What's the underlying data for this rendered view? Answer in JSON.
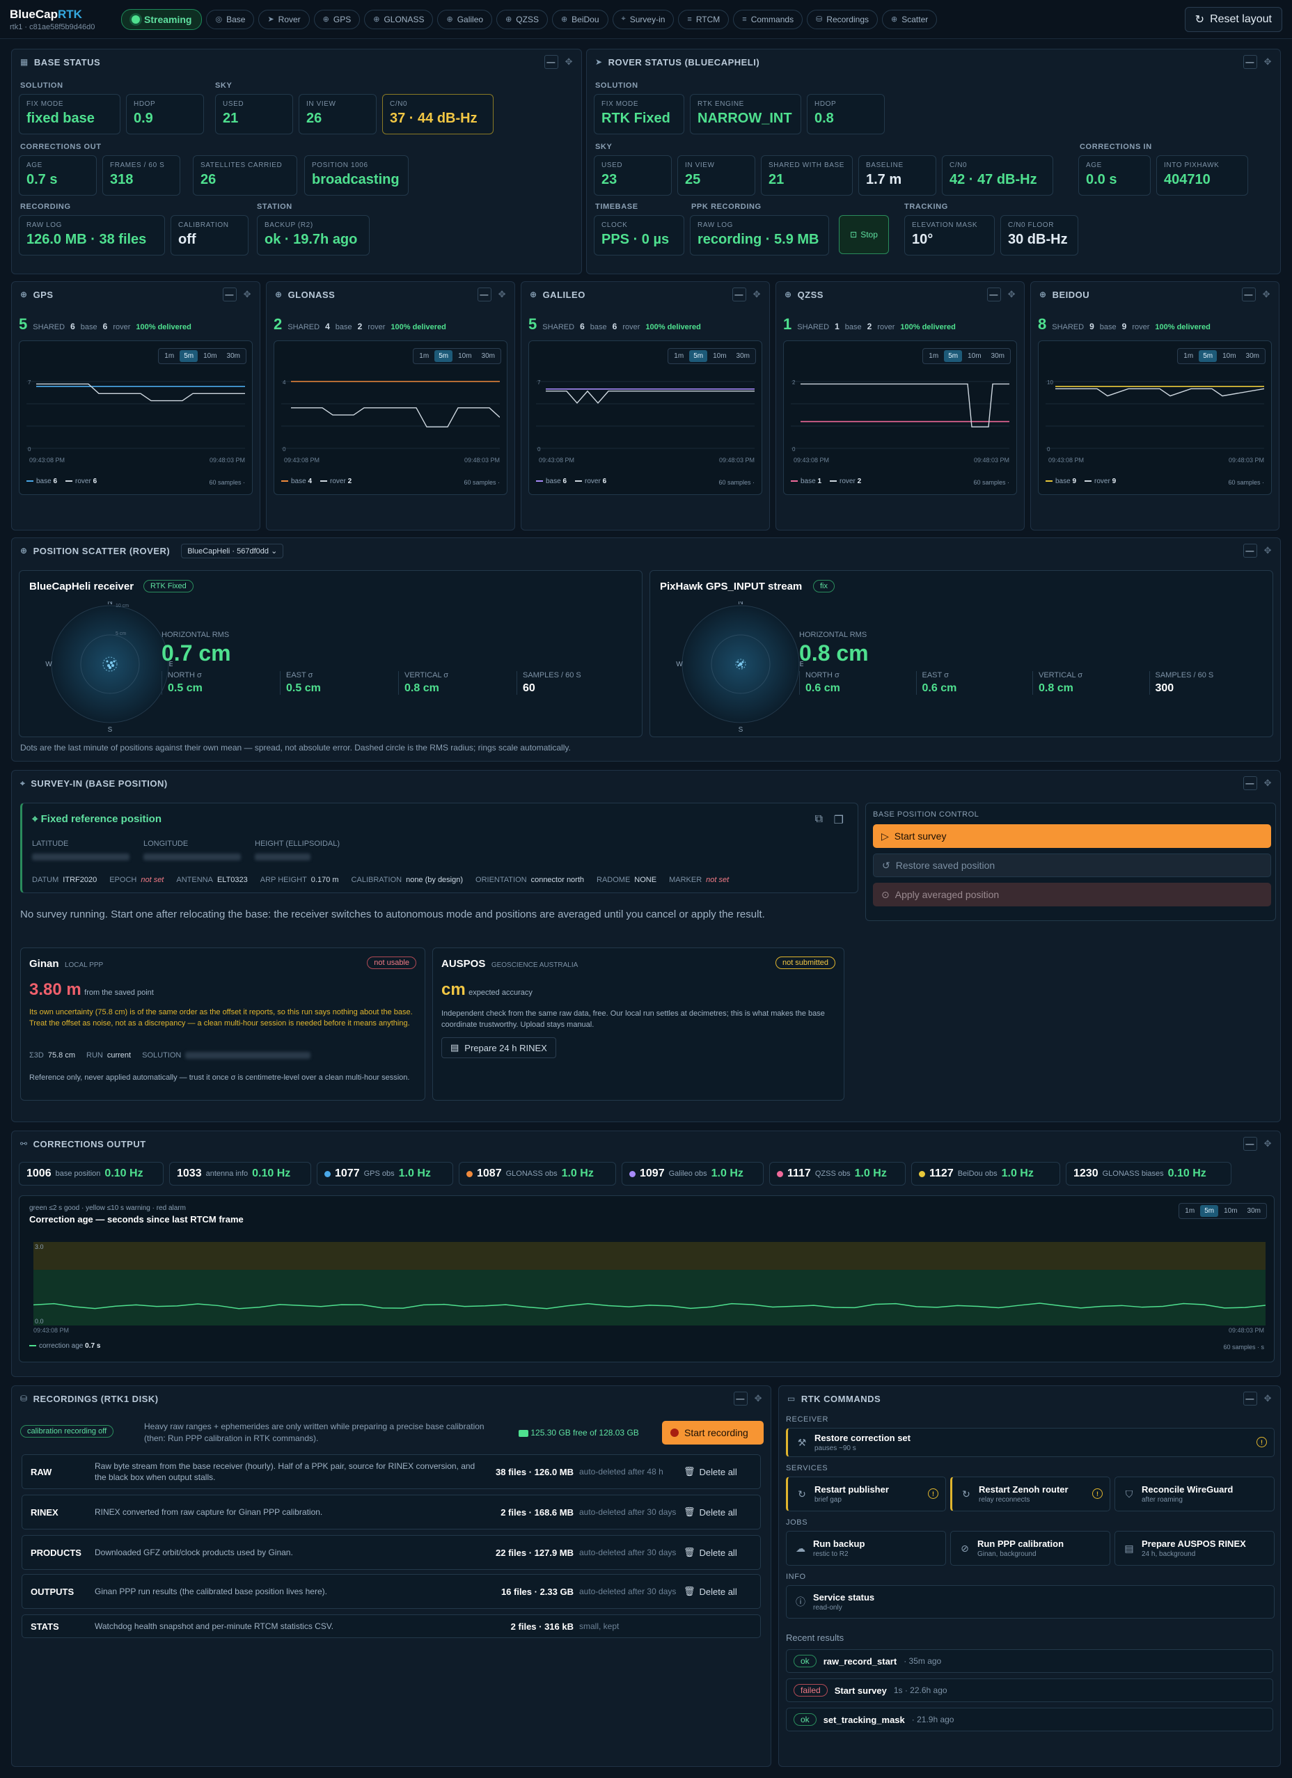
{
  "app": {
    "name_a": "BlueCap",
    "name_b": "RTK",
    "subtitle": "rtk1 · c81ae58f5b9d46d0"
  },
  "topnav": {
    "status": "Streaming",
    "tabs": [
      "Base",
      "Rover",
      "GPS",
      "GLONASS",
      "Galileo",
      "QZSS",
      "BeiDou",
      "Survey-in",
      "RTCM",
      "Commands",
      "Recordings",
      "Scatter"
    ],
    "reset": "Reset layout"
  },
  "base": {
    "title": "BASE STATUS",
    "sec": {
      "solution": "SOLUTION",
      "sky": "SKY",
      "corr": "CORRECTIONS OUT",
      "rec": "RECORDING",
      "station": "STATION"
    },
    "tiles": {
      "fix": {
        "l": "FIX MODE",
        "v": "fixed base"
      },
      "hdop": {
        "l": "HDOP",
        "v": "0.9"
      },
      "used": {
        "l": "USED",
        "v": "21"
      },
      "inview": {
        "l": "IN VIEW",
        "v": "26"
      },
      "cn0": {
        "l": "C/N0",
        "v": "37 · 44 dB-Hz"
      },
      "age": {
        "l": "AGE",
        "v": "0.7 s"
      },
      "frames": {
        "l": "FRAMES / 60 S",
        "v": "318"
      },
      "sats": {
        "l": "SATELLITES CARRIED",
        "v": "26"
      },
      "pos": {
        "l": "POSITION 1006",
        "v": "broadcasting"
      },
      "rawlog": {
        "l": "RAW LOG",
        "v": "126.0 MB · 38 files"
      },
      "calib": {
        "l": "CALIBRATION",
        "v": "off"
      },
      "backup": {
        "l": "BACKUP (R2)",
        "v": "ok · 19.7h ago"
      }
    }
  },
  "rover": {
    "title": "ROVER STATUS (BLUECAPHELI)",
    "sec": {
      "solution": "SOLUTION",
      "sky": "SKY",
      "corrin": "CORRECTIONS IN",
      "timebase": "TIMEBASE",
      "ppk": "PPK RECORDING",
      "tracking": "TRACKING"
    },
    "tiles": {
      "fix": {
        "l": "FIX MODE",
        "v": "RTK Fixed"
      },
      "engine": {
        "l": "RTK ENGINE",
        "v": "NARROW_INT"
      },
      "hdop": {
        "l": "HDOP",
        "v": "0.8"
      },
      "used": {
        "l": "USED",
        "v": "23"
      },
      "inview": {
        "l": "IN VIEW",
        "v": "25"
      },
      "shared": {
        "l": "SHARED WITH BASE",
        "v": "21"
      },
      "baseline": {
        "l": "BASELINE",
        "v": "1.7 m"
      },
      "cn0": {
        "l": "C/N0",
        "v": "42 · 47 dB-Hz"
      },
      "age": {
        "l": "AGE",
        "v": "0.0 s"
      },
      "pixhawk": {
        "l": "INTO PIXHAWK",
        "v": "404710"
      },
      "clock": {
        "l": "CLOCK",
        "v": "PPS · 0 µs"
      },
      "rawlog": {
        "l": "RAW LOG",
        "v": "recording · 5.9 MB"
      },
      "elev": {
        "l": "ELEVATION MASK",
        "v": "10°"
      },
      "cnfloor": {
        "l": "C/N0 FLOOR",
        "v": "30 dB-Hz"
      }
    },
    "stop": "Stop"
  },
  "constellations": [
    {
      "name": "GPS",
      "shared": "5",
      "base": "6",
      "rover": "6",
      "delivered": "100% delivered",
      "color": "#4aa8e8",
      "top": "7",
      "legend_base": "6",
      "legend_rover": "6"
    },
    {
      "name": "GLONASS",
      "shared": "2",
      "base": "4",
      "rover": "2",
      "delivered": "100% delivered",
      "color": "#f08a3c",
      "top": "4",
      "legend_base": "4",
      "legend_rover": "2"
    },
    {
      "name": "GALILEO",
      "shared": "5",
      "base": "6",
      "rover": "6",
      "delivered": "100% delivered",
      "color": "#a78bfa",
      "top": "7",
      "legend_base": "6",
      "legend_rover": "6"
    },
    {
      "name": "QZSS",
      "shared": "1",
      "base": "1",
      "rover": "2",
      "delivered": "100% delivered",
      "color": "#f06a9a",
      "top": "2",
      "legend_base": "1",
      "legend_rover": "2"
    },
    {
      "name": "BEIDOU",
      "shared": "8",
      "base": "9",
      "rover": "9",
      "delivered": "100% delivered",
      "color": "#e8c83a",
      "top": "10",
      "legend_base": "9",
      "legend_rover": "9"
    }
  ],
  "const_common": {
    "shared_lbl": "SHARED",
    "base_lbl": "base",
    "rover_lbl": "rover",
    "ranges": [
      "1m",
      "5m",
      "10m",
      "30m"
    ],
    "t0": "09:43:08 PM",
    "t1": "09:48:03 PM",
    "zero": "0",
    "samples": "60 samples ·"
  },
  "scatter": {
    "title": "POSITION SCATTER (ROVER)",
    "select": "BlueCapHeli · 567df0dd",
    "left": {
      "name": "BlueCapHeli receiver",
      "badge": "RTK Fixed",
      "hrms_l": "HORIZONTAL RMS",
      "hrms": "0.7 cm",
      "north_l": "NORTH σ",
      "north": "0.5 cm",
      "east_l": "EAST σ",
      "east": "0.5 cm",
      "vert_l": "VERTICAL σ",
      "vert": "0.8 cm",
      "samp_l": "SAMPLES / 60 S",
      "samp": "60",
      "scale_in": "5 cm",
      "scale_out": "10 cm"
    },
    "right": {
      "name": "PixHawk GPS_INPUT stream",
      "badge": "fix",
      "hrms_l": "HORIZONTAL RMS",
      "hrms": "0.8 cm",
      "north_l": "NORTH σ",
      "north": "0.6 cm",
      "east_l": "EAST σ",
      "east": "0.6 cm",
      "vert_l": "VERTICAL σ",
      "vert": "0.8 cm",
      "samp_l": "SAMPLES / 60 S",
      "samp": "300"
    },
    "compass": {
      "n": "N",
      "s": "S",
      "e": "E",
      "w": "W"
    },
    "note": "Dots are the last minute of positions against their own mean — spread, not absolute error. Dashed circle is the RMS radius; rings scale automatically."
  },
  "survey": {
    "title": "SURVEY-IN (BASE POSITION)",
    "ref": {
      "title": "Fixed reference position",
      "lat_l": "LATITUDE",
      "lon_l": "LONGITUDE",
      "h_l": "HEIGHT (ELLIPSOIDAL)",
      "datum_l": "DATUM",
      "datum": "ITRF2020",
      "epoch_l": "EPOCH",
      "epoch": "not set",
      "ant_l": "ANTENNA",
      "ant": "ELT0323",
      "arp_l": "ARP HEIGHT",
      "arp": "0.170 m",
      "cal_l": "CALIBRATION",
      "cal": "none (by design)",
      "or_l": "ORIENTATION",
      "or": "connector north",
      "rad_l": "RADOME",
      "rad": "NONE",
      "mk_l": "MARKER",
      "mk": "not set"
    },
    "control": {
      "title": "BASE POSITION CONTROL",
      "start": "Start survey",
      "restore": "Restore saved position",
      "apply": "Apply averaged position"
    },
    "idle": "No survey running. Start one after relocating the base: the receiver switches to autonomous mode and positions are averaged until you cancel or apply the result.",
    "ginan": {
      "name": "Ginan",
      "sub": "LOCAL PPP",
      "badge": "not usable",
      "offset": "3.80 m",
      "from": "from the saved point",
      "warn": "Its own uncertainty (75.8 cm) is of the same order as the offset it reports, so this run says nothing about the base. Treat the offset as noise, not as a discrepancy — a clean multi-hour session is needed before it means anything.",
      "s3d_l": "Σ3D",
      "s3d": "75.8 cm",
      "run_l": "RUN",
      "run": "current",
      "sol_l": "SOLUTION",
      "foot": "Reference only, never applied automatically — trust it once σ is centimetre-level over a clean multi-hour session."
    },
    "auspos": {
      "name": "AUSPOS",
      "sub": "GEOSCIENCE AUSTRALIA",
      "badge": "not submitted",
      "unit": "cm",
      "exp": "expected accuracy",
      "desc": "Independent check from the same raw data, free. Our local run settles at decimetres; this is what makes the base coordinate trustworthy. Upload stays manual.",
      "btn": "Prepare 24 h RINEX"
    }
  },
  "corr": {
    "title": "CORRECTIONS OUTPUT",
    "msgs": [
      {
        "id": "1006",
        "name": "base position",
        "hz": "0.10 Hz",
        "color": ""
      },
      {
        "id": "1033",
        "name": "antenna info",
        "hz": "0.10 Hz",
        "color": ""
      },
      {
        "id": "1077",
        "name": "GPS obs",
        "hz": "1.0 Hz",
        "color": "#4aa8e8"
      },
      {
        "id": "1087",
        "name": "GLONASS obs",
        "hz": "1.0 Hz",
        "color": "#f08a3c"
      },
      {
        "id": "1097",
        "name": "Galileo obs",
        "hz": "1.0 Hz",
        "color": "#a78bfa"
      },
      {
        "id": "1117",
        "name": "QZSS obs",
        "hz": "1.0 Hz",
        "color": "#f06a9a"
      },
      {
        "id": "1127",
        "name": "BeiDou obs",
        "hz": "1.0 Hz",
        "color": "#e8c83a"
      },
      {
        "id": "1230",
        "name": "GLONASS biases",
        "hz": "0.10 Hz",
        "color": ""
      }
    ],
    "legend_note": "green ≤2 s good · yellow ≤10 s warning · red alarm",
    "chart_title": "Correction age — seconds since last RTCM frame",
    "ymax": "3.0",
    "ymin": "0.0",
    "t0": "09:43:08 PM",
    "t1": "09:48:03 PM",
    "series_label": "correction age",
    "series_val": "0.7 s",
    "samples": "60 samples · s"
  },
  "rec": {
    "title": "RECORDINGS (RTK1 DISK)",
    "badge": "calibration recording off",
    "note": "Heavy raw ranges + ephemerides are only written while preparing a precise base calibration (then: Run PPP calibration in RTK commands).",
    "disk": "125.30 GB free of 128.03 GB",
    "start": "Start recording",
    "rows": [
      {
        "k": "RAW",
        "d": "Raw byte stream from the base receiver (hourly). Half of a PPK pair, source for RINEX conversion, and the black box when output stalls.",
        "n": "38 files · 126.0 MB",
        "a": "auto-deleted after 48 h",
        "del": "Delete all"
      },
      {
        "k": "RINEX",
        "d": "RINEX converted from raw capture for Ginan PPP calibration.",
        "n": "2 files · 168.6 MB",
        "a": "auto-deleted after 30 days",
        "del": "Delete all"
      },
      {
        "k": "PRODUCTS",
        "d": "Downloaded GFZ orbit/clock products used by Ginan.",
        "n": "22 files · 127.9 MB",
        "a": "auto-deleted after 30 days",
        "del": "Delete all"
      },
      {
        "k": "OUTPUTS",
        "d": "Ginan PPP run results (the calibrated base position lives here).",
        "n": "16 files · 2.33 GB",
        "a": "auto-deleted after 30 days",
        "del": "Delete all"
      },
      {
        "k": "STATS",
        "d": "Watchdog health snapshot and per-minute RTCM statistics CSV.",
        "n": "2 files · 316 kB",
        "a": "small, kept",
        "del": ""
      }
    ]
  },
  "cmds": {
    "title": "RTK COMMANDS",
    "sec": {
      "receiver": "RECEIVER",
      "services": "SERVICES",
      "jobs": "JOBS",
      "info": "INFO",
      "recent": "Recent results"
    },
    "receiver": [
      {
        "t": "Restore correction set",
        "s": "pauses ~90 s"
      }
    ],
    "services": [
      {
        "t": "Restart publisher",
        "s": "brief gap"
      },
      {
        "t": "Restart Zenoh router",
        "s": "relay reconnects"
      },
      {
        "t": "Reconcile WireGuard",
        "s": "after roaming"
      }
    ],
    "jobs": [
      {
        "t": "Run backup",
        "s": "restic to R2"
      },
      {
        "t": "Run PPP calibration",
        "s": "Ginan, background"
      },
      {
        "t": "Prepare AUSPOS RINEX",
        "s": "24 h, background"
      }
    ],
    "info": [
      {
        "t": "Service status",
        "s": "read-only"
      }
    ],
    "results": [
      {
        "st": "ok",
        "name": "raw_record_start",
        "tm": "· 35m ago"
      },
      {
        "st": "failed",
        "name": "Start survey",
        "tm": "1s · 22.6h ago"
      },
      {
        "st": "ok",
        "name": "set_tracking_mask",
        "tm": "· 21.9h ago"
      }
    ]
  }
}
